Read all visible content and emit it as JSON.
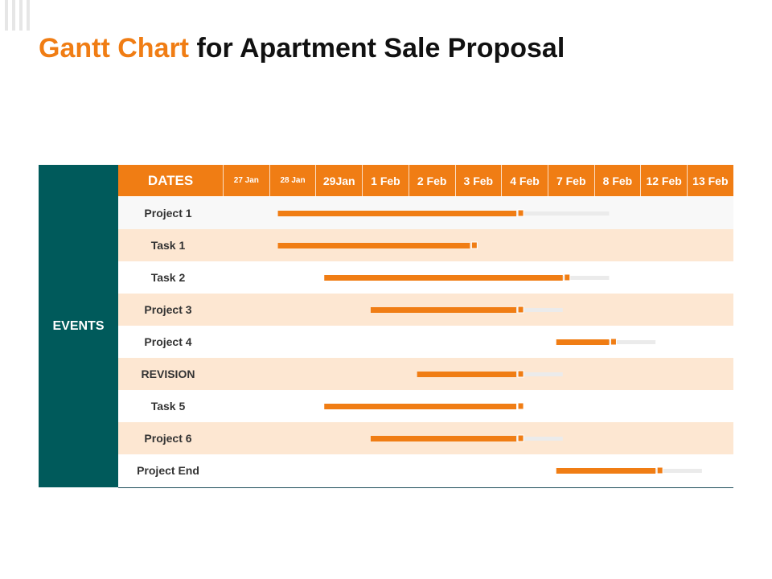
{
  "title": {
    "accent": "Gantt Chart",
    "rest": " for Apartment Sale Proposal"
  },
  "colors": {
    "accent": "#f07d14",
    "teal": "#005a5b",
    "row_alt": "#fde7d2",
    "track": "#ebebeb"
  },
  "chart_data": {
    "type": "gantt",
    "title": "Gantt Chart for Apartment Sale Proposal",
    "row_group_label": "EVENTS",
    "date_header": "DATES",
    "dates": [
      "27 Jan",
      "28 Jan",
      "29Jan",
      "1 Feb",
      "2 Feb",
      "3 Feb",
      "4 Feb",
      "7 Feb",
      "8 Feb",
      "12 Feb",
      "13 Feb"
    ],
    "tasks": [
      {
        "name": "Project 1",
        "start": "28 Jan",
        "end": "4 Feb",
        "planned_end": "8 Feb"
      },
      {
        "name": "Task 1",
        "start": "28 Jan",
        "end": "3 Feb",
        "planned_end": "3 Feb"
      },
      {
        "name": "Task 2",
        "start": "29Jan",
        "end": "7 Feb",
        "planned_end": "8 Feb"
      },
      {
        "name": "Project 3",
        "start": "1 Feb",
        "end": "4 Feb",
        "planned_end": "7 Feb"
      },
      {
        "name": "Project 4",
        "start": "7 Feb",
        "end": "8 Feb",
        "planned_end": "12 Feb"
      },
      {
        "name": "REVISION",
        "start": "2 Feb",
        "end": "4 Feb",
        "planned_end": "7 Feb"
      },
      {
        "name": "Task 5",
        "start": "29Jan",
        "end": "4 Feb",
        "planned_end": "4 Feb"
      },
      {
        "name": "Project 6",
        "start": "1 Feb",
        "end": "4 Feb",
        "planned_end": "7 Feb"
      },
      {
        "name": "Project End",
        "start": "7 Feb",
        "end": "12 Feb",
        "planned_end": "13 Feb"
      }
    ]
  }
}
